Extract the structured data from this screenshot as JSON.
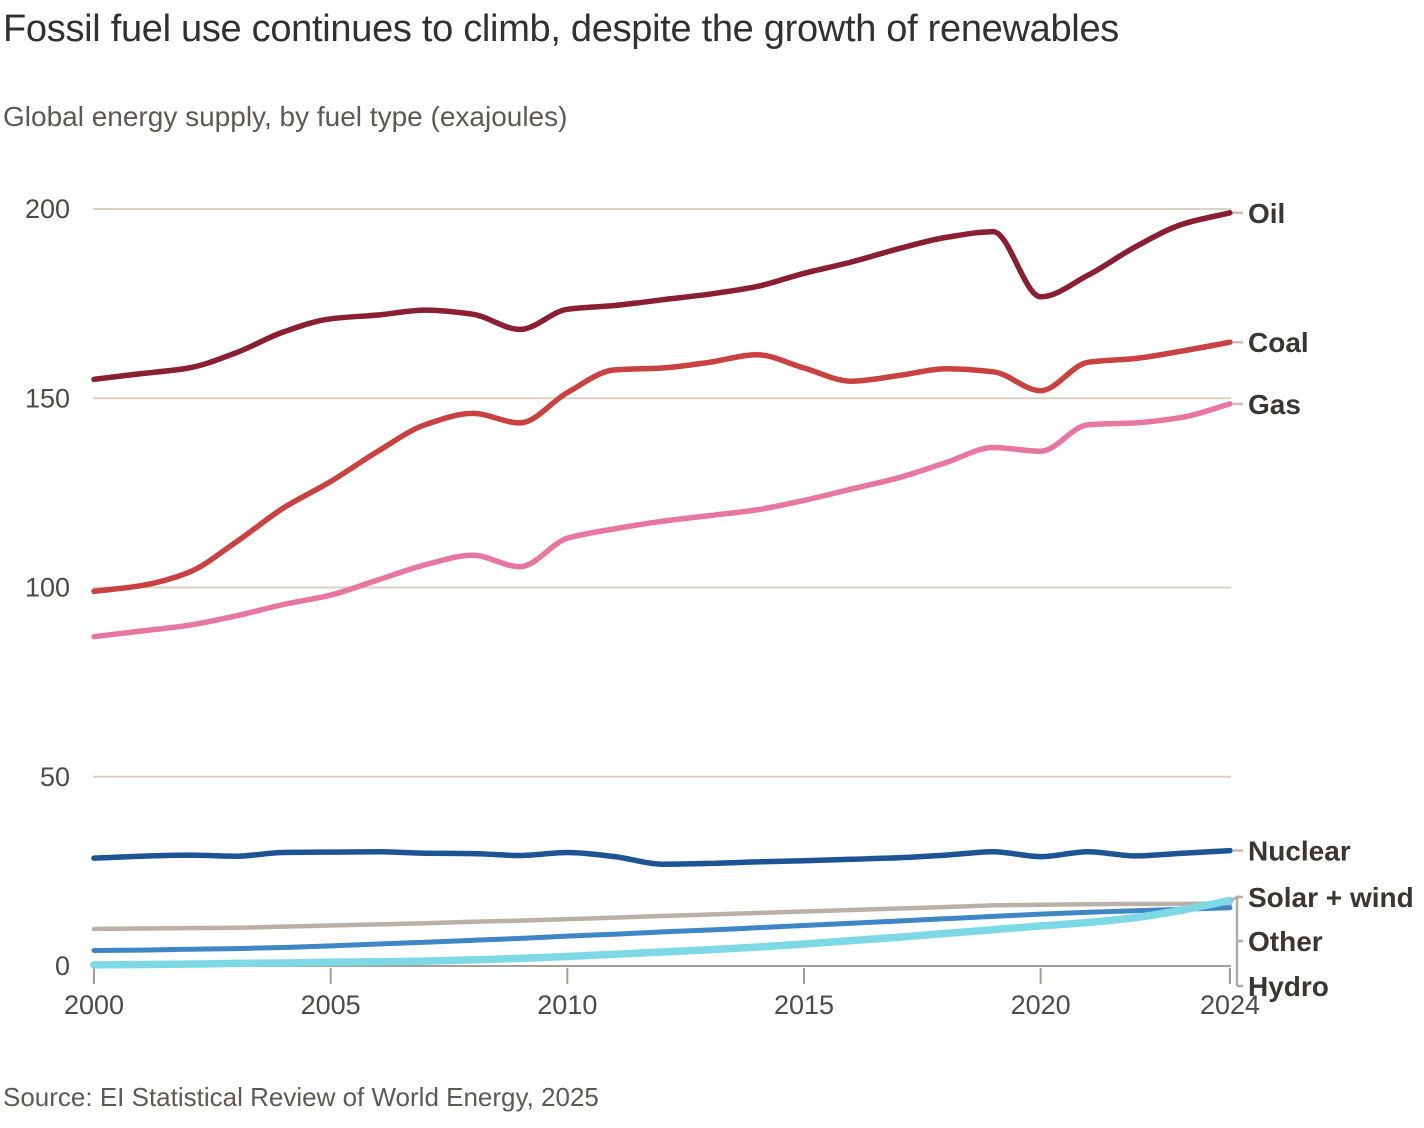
{
  "header": {
    "title": "Fossil fuel use continues to climb, despite the growth of renewables",
    "subtitle": "Global energy supply, by fuel type (exajoules)"
  },
  "footer": {
    "source": "Source: EI Statistical Review of World Energy, 2025"
  },
  "colors": {
    "background": "#ffffff",
    "gridline": "#dad1c4",
    "zero_axis": "#a49e96",
    "connector": "#b3aca3",
    "inline_connector": "#c8c0b5",
    "axis_text": "#4f4a44",
    "series_label_text": "#3b3631"
  },
  "chart_data": {
    "type": "line",
    "title": "Fossil fuel use continues to climb, despite the growth of renewables",
    "subtitle": "Global energy supply, by fuel type (exajoules)",
    "xlabel": "",
    "ylabel": "exajoules",
    "grid": true,
    "legend_position": "right-of-line-ends",
    "xlim": [
      2000,
      2024
    ],
    "ylim": [
      0,
      200
    ],
    "xticks": [
      2000,
      2005,
      2010,
      2015,
      2020,
      2024
    ],
    "yticks": [
      0,
      50,
      100,
      150,
      200
    ],
    "x": [
      2000,
      2001,
      2002,
      2003,
      2004,
      2005,
      2006,
      2007,
      2008,
      2009,
      2010,
      2011,
      2012,
      2013,
      2014,
      2015,
      2016,
      2017,
      2018,
      2019,
      2020,
      2021,
      2022,
      2023,
      2024
    ],
    "series": [
      {
        "name": "Other",
        "label": "Other",
        "color": "#b9b1a8",
        "width": 4.5,
        "bracket": true,
        "values": [
          9.8,
          9.9,
          10.0,
          10.1,
          10.4,
          10.7,
          11.0,
          11.3,
          11.7,
          12.0,
          12.4,
          12.8,
          13.2,
          13.6,
          14.0,
          14.4,
          14.8,
          15.2,
          15.6,
          16.0,
          16.2,
          16.3,
          16.4,
          16.4,
          16.5
        ]
      },
      {
        "name": "Hydro",
        "label": "Hydro",
        "color": "#3f86c6",
        "width": 5,
        "bracket": true,
        "values": [
          4.1,
          4.2,
          4.4,
          4.6,
          4.9,
          5.3,
          5.8,
          6.3,
          6.8,
          7.3,
          7.9,
          8.4,
          9.0,
          9.5,
          10.1,
          10.7,
          11.3,
          11.9,
          12.5,
          13.1,
          13.7,
          14.2,
          14.6,
          15.0,
          15.4
        ]
      },
      {
        "name": "Solar + wind",
        "label": "Solar + wind",
        "color": "#7ed9e6",
        "width": 7.5,
        "bracket": true,
        "values": [
          0.3,
          0.4,
          0.5,
          0.7,
          0.8,
          1.0,
          1.1,
          1.3,
          1.6,
          2.0,
          2.5,
          3.1,
          3.7,
          4.3,
          5.0,
          5.8,
          6.7,
          7.6,
          8.6,
          9.6,
          10.6,
          11.5,
          12.8,
          14.8,
          17.3
        ]
      },
      {
        "name": "Nuclear",
        "label": "Nuclear",
        "color": "#1d5496",
        "width": 5.5,
        "bracket": false,
        "values": [
          28.5,
          29.0,
          29.3,
          29.0,
          30.0,
          30.1,
          30.2,
          29.8,
          29.7,
          29.2,
          30.0,
          28.9,
          26.9,
          27.1,
          27.5,
          27.8,
          28.2,
          28.6,
          29.3,
          30.2,
          28.9,
          30.2,
          29.1,
          29.8,
          30.5
        ]
      },
      {
        "name": "Gas",
        "label": "Gas",
        "color": "#e8779f",
        "width": 5.5,
        "bracket": false,
        "values": [
          87,
          88.5,
          90,
          92.5,
          95.5,
          98,
          102,
          106,
          108.5,
          105.5,
          113,
          115.5,
          117.5,
          119,
          120.5,
          123,
          126,
          129,
          133,
          137,
          136,
          143,
          143.5,
          145,
          148.5
        ]
      },
      {
        "name": "Coal",
        "label": "Coal",
        "color": "#c94141",
        "width": 5.5,
        "bracket": false,
        "values": [
          99,
          100.5,
          104,
          112,
          121,
          128,
          136,
          143,
          146,
          143.5,
          151.5,
          157.5,
          158,
          159.5,
          161.5,
          158,
          154.5,
          156,
          157.8,
          157,
          152,
          159.5,
          160.5,
          162.5,
          164.8
        ]
      },
      {
        "name": "Oil",
        "label": "Oil",
        "color": "#8a1e33",
        "width": 5.5,
        "bracket": false,
        "values": [
          155,
          156.5,
          158,
          162,
          167.5,
          171,
          172,
          173.3,
          172.2,
          168.2,
          173.5,
          174.5,
          176,
          177.5,
          179.5,
          183,
          186,
          189.5,
          192.5,
          194,
          176.8,
          182.5,
          190,
          196,
          199
        ]
      }
    ]
  }
}
